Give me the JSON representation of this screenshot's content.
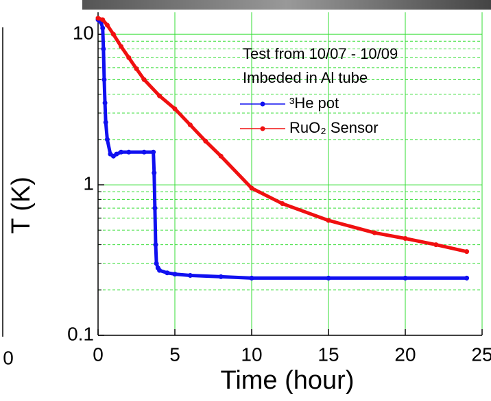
{
  "chart_data": {
    "type": "line",
    "xlabel": "Time (hour)",
    "ylabel": "T (K)",
    "yscale": "log",
    "annotations": [
      "Test from 10/07 - 10/09",
      "Imbeded in Al tube"
    ],
    "cropped_axis_label": "0",
    "xlim": [
      0,
      25
    ],
    "xticks": [
      0,
      5,
      10,
      15,
      20,
      25
    ],
    "ylim": [
      0.1,
      14
    ],
    "yticks": [
      0.1,
      1,
      10
    ],
    "y_minor_ticks": [
      0.2,
      0.3,
      0.4,
      0.5,
      0.6,
      0.7,
      0.8,
      0.9,
      2,
      3,
      4,
      5,
      6,
      7,
      8,
      9
    ],
    "grid": true,
    "grid_color": "#33dd33",
    "series": [
      {
        "name": "³He pot",
        "color": "#1010f0",
        "x": [
          0,
          0.1,
          0.2,
          0.3,
          0.35,
          0.4,
          0.45,
          0.5,
          0.6,
          0.8,
          1.0,
          1.2,
          1.5,
          2,
          3,
          3.6,
          3.65,
          3.7,
          3.75,
          3.8,
          3.9,
          4,
          4.5,
          5,
          6,
          8,
          10,
          15,
          20,
          24
        ],
        "values": [
          12.5,
          12.3,
          12.0,
          11,
          8,
          5,
          3.5,
          2.6,
          2.0,
          1.6,
          1.55,
          1.6,
          1.65,
          1.65,
          1.65,
          1.65,
          1.2,
          0.7,
          0.4,
          0.3,
          0.28,
          0.27,
          0.26,
          0.255,
          0.25,
          0.245,
          0.24,
          0.24,
          0.24,
          0.24
        ]
      },
      {
        "name": "RuO₂ Sensor",
        "color": "#f01010",
        "x": [
          0,
          0.3,
          0.6,
          1,
          1.5,
          2,
          2.5,
          3,
          4,
          5,
          6,
          7,
          8,
          10,
          12,
          15,
          18,
          20,
          22,
          24
        ],
        "values": [
          12.8,
          12.5,
          11.5,
          10,
          8.3,
          7,
          5.9,
          5,
          3.9,
          3.2,
          2.5,
          1.95,
          1.55,
          0.95,
          0.75,
          0.58,
          0.48,
          0.44,
          0.4,
          0.36
        ]
      }
    ]
  }
}
